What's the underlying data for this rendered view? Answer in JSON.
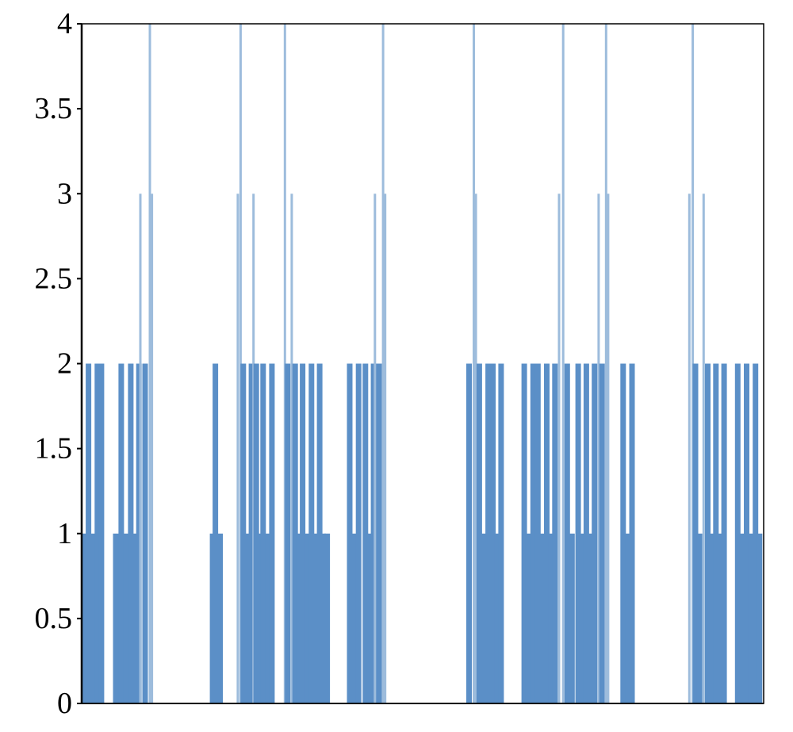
{
  "chart_data": {
    "type": "bar",
    "title": "",
    "xlabel": "",
    "ylabel": "",
    "ylim": [
      0,
      4
    ],
    "yticks": [
      "0",
      "0.5",
      "1",
      "1.5",
      "2",
      "2.5",
      "3",
      "3.5",
      "4"
    ],
    "grid": false,
    "legend": "none",
    "x_range": [
      0,
      100
    ],
    "color": "#5b8fc7",
    "spike_color": "#9dbcdc",
    "series": [
      {
        "values": [
          [
            0.5,
            1
          ],
          [
            1,
            2
          ],
          [
            1.6,
            1
          ],
          [
            2.3,
            2
          ],
          [
            2.9,
            2
          ],
          [
            5,
            1
          ],
          [
            5.8,
            2
          ],
          [
            6.5,
            1
          ],
          [
            7.2,
            2
          ],
          [
            7.8,
            1
          ],
          [
            8.4,
            2
          ],
          [
            8.6,
            3
          ],
          [
            9.3,
            2
          ],
          [
            10,
            4
          ],
          [
            10.3,
            3
          ],
          [
            19.2,
            1
          ],
          [
            19.6,
            2
          ],
          [
            20.3,
            1
          ],
          [
            22.9,
            3
          ],
          [
            23.3,
            4
          ],
          [
            23.7,
            2
          ],
          [
            24.3,
            1
          ],
          [
            24.9,
            2
          ],
          [
            25.2,
            3
          ],
          [
            25.6,
            2
          ],
          [
            26,
            1
          ],
          [
            26.6,
            2
          ],
          [
            27.3,
            1
          ],
          [
            27.9,
            2
          ],
          [
            29.8,
            4
          ],
          [
            30.2,
            2
          ],
          [
            30.8,
            3
          ],
          [
            31.3,
            2
          ],
          [
            31.9,
            1
          ],
          [
            32.4,
            2
          ],
          [
            33.1,
            1
          ],
          [
            33.7,
            2
          ],
          [
            34.3,
            1
          ],
          [
            34.9,
            2
          ],
          [
            35.4,
            1
          ],
          [
            36,
            1
          ],
          [
            39.3,
            2
          ],
          [
            39.9,
            1
          ],
          [
            40.6,
            2
          ],
          [
            41.6,
            2
          ],
          [
            42.2,
            1
          ],
          [
            42.8,
            2
          ],
          [
            43,
            3
          ],
          [
            43.6,
            2
          ],
          [
            44.2,
            4
          ],
          [
            44.5,
            3
          ],
          [
            56.8,
            2
          ],
          [
            57.5,
            4
          ],
          [
            57.8,
            3
          ],
          [
            58.3,
            2
          ],
          [
            58.9,
            1
          ],
          [
            59.6,
            2
          ],
          [
            60.3,
            2
          ],
          [
            60.9,
            1
          ],
          [
            61.5,
            2
          ],
          [
            64.9,
            2
          ],
          [
            65.5,
            1
          ],
          [
            66.2,
            2
          ],
          [
            66.9,
            2
          ],
          [
            67.5,
            1
          ],
          [
            68.2,
            2
          ],
          [
            68.8,
            1
          ],
          [
            69.4,
            2
          ],
          [
            70,
            3
          ],
          [
            70.6,
            4
          ],
          [
            71.2,
            2
          ],
          [
            71.9,
            1
          ],
          [
            72.8,
            2
          ],
          [
            73.4,
            1
          ],
          [
            74,
            2
          ],
          [
            74.6,
            1
          ],
          [
            75.2,
            2
          ],
          [
            75.8,
            3
          ],
          [
            76.3,
            2
          ],
          [
            76.9,
            4
          ],
          [
            77.2,
            3
          ],
          [
            79.4,
            2
          ],
          [
            80.1,
            1
          ],
          [
            80.7,
            2
          ],
          [
            89.1,
            3
          ],
          [
            89.6,
            4
          ],
          [
            90,
            2
          ],
          [
            90.6,
            1
          ],
          [
            91.2,
            3
          ],
          [
            91.8,
            2
          ],
          [
            92.4,
            1
          ],
          [
            93,
            2
          ],
          [
            93.6,
            1
          ],
          [
            94.2,
            2
          ],
          [
            96.2,
            2
          ],
          [
            96.8,
            1
          ],
          [
            97.5,
            2
          ],
          [
            98.1,
            1
          ],
          [
            98.8,
            2
          ],
          [
            99.4,
            1
          ]
        ]
      }
    ]
  }
}
